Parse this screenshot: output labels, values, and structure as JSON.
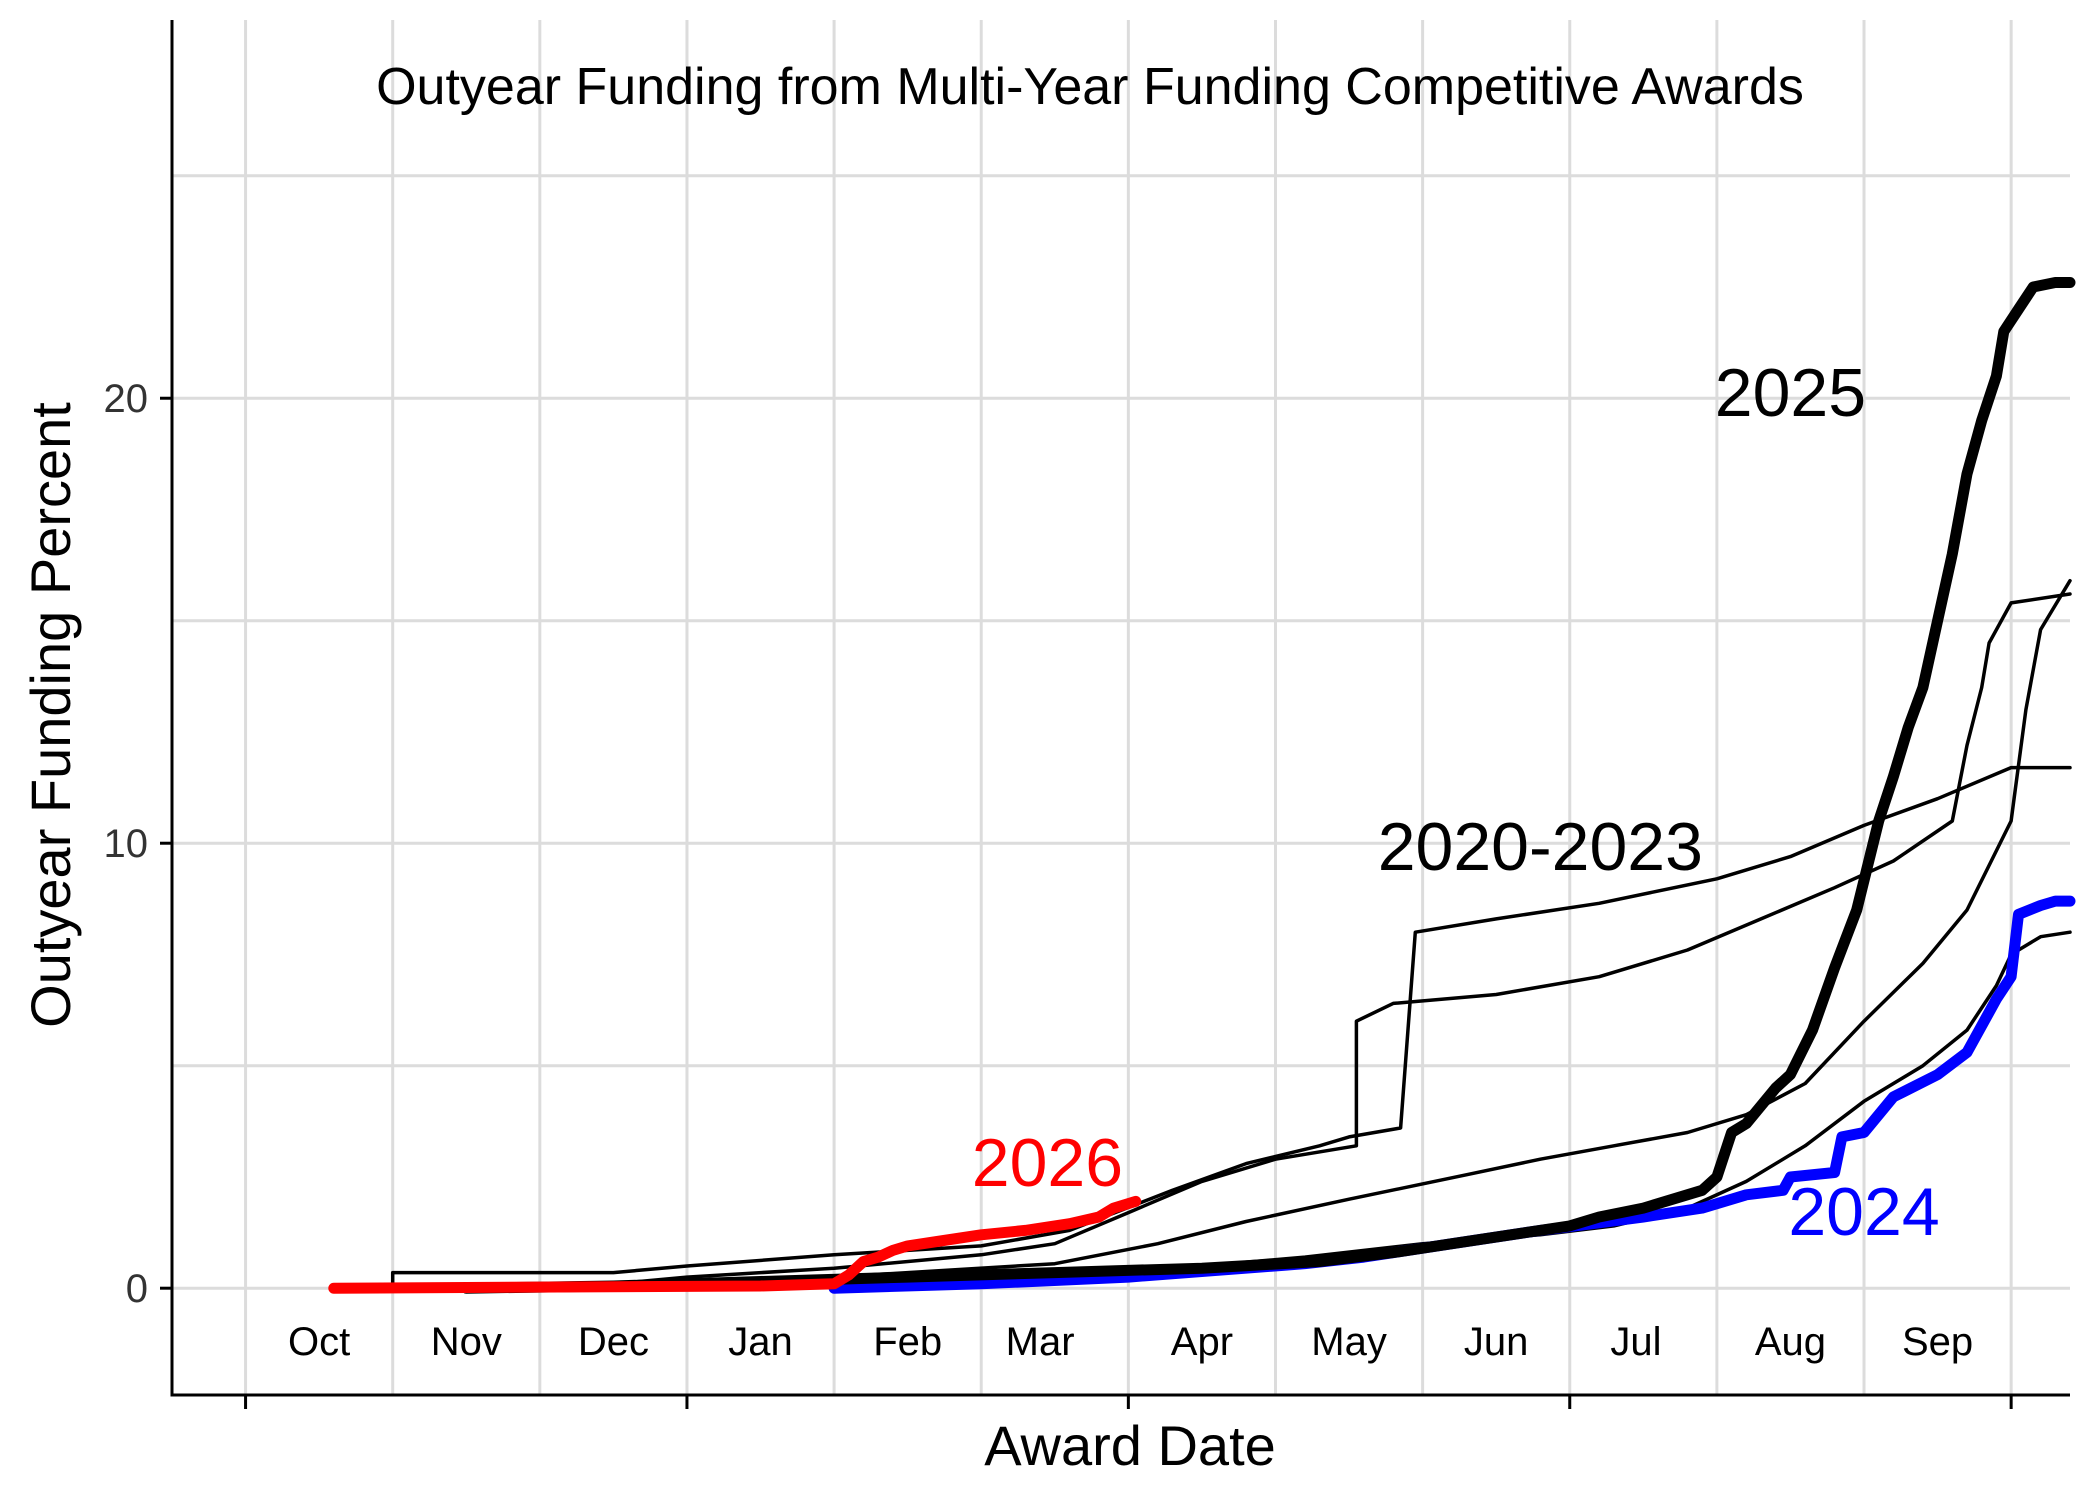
{
  "chart_data": {
    "type": "line",
    "title": "Outyear Funding from Multi-Year Funding Competitive Awards",
    "xlabel": "Award Date",
    "ylabel": "Outyear Funding Percent",
    "x_unit": "month of fiscal year (0 = Oct 1)",
    "xlim": [
      -0.5,
      12.4
    ],
    "ylim": [
      -2.4,
      28.5
    ],
    "y_ticks": [
      0,
      10,
      20
    ],
    "y_minor_grid": [
      5,
      15,
      25
    ],
    "x_major_grid": [
      0,
      3,
      6,
      9,
      12
    ],
    "x_tick_labels": [
      {
        "label": "Oct",
        "x": 0.5
      },
      {
        "label": "Nov",
        "x": 1.5
      },
      {
        "label": "Dec",
        "x": 2.5
      },
      {
        "label": "Jan",
        "x": 3.5
      },
      {
        "label": "Feb",
        "x": 4.5
      },
      {
        "label": "Mar",
        "x": 5.4
      },
      {
        "label": "Apr",
        "x": 6.5
      },
      {
        "label": "May",
        "x": 7.5
      },
      {
        "label": "Jun",
        "x": 8.5
      },
      {
        "label": "Jul",
        "x": 9.45
      },
      {
        "label": "Aug",
        "x": 10.5
      },
      {
        "label": "Sep",
        "x": 11.5
      }
    ],
    "grid": true,
    "series": [
      {
        "group": "2020-2023",
        "color": "#000000",
        "width": "thin",
        "points": [
          [
            1.0,
            0.0
          ],
          [
            1.0,
            0.35
          ],
          [
            2.5,
            0.35
          ],
          [
            3.0,
            0.5
          ],
          [
            4.0,
            0.75
          ],
          [
            5.0,
            0.95
          ],
          [
            5.6,
            1.3
          ],
          [
            6.3,
            2.2
          ],
          [
            6.8,
            2.8
          ],
          [
            7.3,
            3.2
          ],
          [
            7.5,
            3.4
          ],
          [
            7.85,
            3.6
          ],
          [
            7.95,
            8.0
          ],
          [
            8.5,
            8.3
          ],
          [
            9.2,
            8.65
          ],
          [
            10.0,
            9.2
          ],
          [
            10.5,
            9.7
          ],
          [
            11.0,
            10.4
          ],
          [
            11.5,
            11.0
          ],
          [
            12.0,
            11.7
          ],
          [
            12.4,
            11.7
          ]
        ]
      },
      {
        "group": "2020-2023",
        "color": "#000000",
        "width": "thin",
        "points": [
          [
            1.5,
            0.0
          ],
          [
            2.5,
            0.1
          ],
          [
            3.0,
            0.25
          ],
          [
            4.0,
            0.45
          ],
          [
            5.0,
            0.75
          ],
          [
            5.5,
            1.0
          ],
          [
            6.0,
            1.7
          ],
          [
            6.5,
            2.4
          ],
          [
            7.0,
            2.9
          ],
          [
            7.55,
            3.2
          ],
          [
            7.55,
            6.0
          ],
          [
            7.8,
            6.4
          ],
          [
            8.5,
            6.6
          ],
          [
            9.2,
            7.0
          ],
          [
            9.8,
            7.6
          ],
          [
            10.3,
            8.3
          ],
          [
            10.8,
            9.0
          ],
          [
            11.2,
            9.6
          ],
          [
            11.6,
            10.5
          ],
          [
            11.7,
            12.2
          ],
          [
            11.8,
            13.5
          ],
          [
            11.85,
            14.5
          ],
          [
            12.0,
            15.4
          ],
          [
            12.4,
            15.6
          ]
        ]
      },
      {
        "group": "2020-2023",
        "color": "#000000",
        "width": "thin",
        "points": [
          [
            2.5,
            0.0
          ],
          [
            3.5,
            0.15
          ],
          [
            4.5,
            0.35
          ],
          [
            5.5,
            0.55
          ],
          [
            6.2,
            1.0
          ],
          [
            6.8,
            1.5
          ],
          [
            7.5,
            2.0
          ],
          [
            8.3,
            2.55
          ],
          [
            8.8,
            2.9
          ],
          [
            9.3,
            3.2
          ],
          [
            9.8,
            3.5
          ],
          [
            10.2,
            3.9
          ],
          [
            10.6,
            4.6
          ],
          [
            11.0,
            6.0
          ],
          [
            11.4,
            7.3
          ],
          [
            11.7,
            8.5
          ],
          [
            12.0,
            10.5
          ],
          [
            12.1,
            13.0
          ],
          [
            12.2,
            14.8
          ],
          [
            12.4,
            15.9
          ]
        ]
      },
      {
        "group": "2020-2023",
        "color": "#000000",
        "width": "thin",
        "points": [
          [
            3.0,
            0.0
          ],
          [
            4.0,
            0.05
          ],
          [
            5.0,
            0.15
          ],
          [
            5.6,
            0.3
          ],
          [
            6.5,
            0.5
          ],
          [
            7.2,
            0.7
          ],
          [
            8.0,
            1.0
          ],
          [
            8.8,
            1.2
          ],
          [
            9.3,
            1.4
          ],
          [
            9.8,
            1.8
          ],
          [
            10.2,
            2.4
          ],
          [
            10.6,
            3.2
          ],
          [
            11.0,
            4.2
          ],
          [
            11.4,
            5.0
          ],
          [
            11.7,
            5.8
          ],
          [
            11.9,
            6.8
          ],
          [
            12.0,
            7.5
          ],
          [
            12.2,
            7.9
          ],
          [
            12.4,
            8.0
          ]
        ]
      },
      {
        "group": "2024",
        "color": "#0000ff",
        "width": "thick",
        "points": [
          [
            4.0,
            0.0
          ],
          [
            5.0,
            0.1
          ],
          [
            6.0,
            0.25
          ],
          [
            6.8,
            0.45
          ],
          [
            7.2,
            0.55
          ],
          [
            7.6,
            0.7
          ],
          [
            8.2,
            1.0
          ],
          [
            8.8,
            1.3
          ],
          [
            9.5,
            1.6
          ],
          [
            9.9,
            1.8
          ],
          [
            10.2,
            2.1
          ],
          [
            10.45,
            2.2
          ],
          [
            10.5,
            2.5
          ],
          [
            10.8,
            2.6
          ],
          [
            10.85,
            3.4
          ],
          [
            11.0,
            3.5
          ],
          [
            11.2,
            4.3
          ],
          [
            11.5,
            4.8
          ],
          [
            11.7,
            5.3
          ],
          [
            11.9,
            6.5
          ],
          [
            12.0,
            7.0
          ],
          [
            12.05,
            8.4
          ],
          [
            12.2,
            8.6
          ],
          [
            12.3,
            8.7
          ],
          [
            12.4,
            8.7
          ]
        ]
      },
      {
        "group": "2025",
        "color": "#000000",
        "width": "thick",
        "points": [
          [
            1.5,
            0.0
          ],
          [
            2.5,
            0.05
          ],
          [
            3.5,
            0.15
          ],
          [
            4.5,
            0.25
          ],
          [
            5.5,
            0.35
          ],
          [
            6.5,
            0.45
          ],
          [
            7.3,
            0.6
          ],
          [
            7.8,
            0.8
          ],
          [
            8.2,
            1.0
          ],
          [
            8.6,
            1.2
          ],
          [
            9.0,
            1.4
          ],
          [
            9.2,
            1.6
          ],
          [
            9.5,
            1.8
          ],
          [
            9.9,
            2.2
          ],
          [
            10.0,
            2.5
          ],
          [
            10.1,
            3.5
          ],
          [
            10.2,
            3.7
          ],
          [
            10.4,
            4.5
          ],
          [
            10.5,
            4.8
          ],
          [
            10.65,
            5.8
          ],
          [
            10.8,
            7.2
          ],
          [
            10.95,
            8.5
          ],
          [
            11.1,
            10.5
          ],
          [
            11.2,
            11.5
          ],
          [
            11.3,
            12.6
          ],
          [
            11.4,
            13.5
          ],
          [
            11.5,
            15.0
          ],
          [
            11.6,
            16.5
          ],
          [
            11.7,
            18.3
          ],
          [
            11.8,
            19.5
          ],
          [
            11.9,
            20.5
          ],
          [
            11.95,
            21.5
          ],
          [
            12.05,
            22.0
          ],
          [
            12.15,
            22.5
          ],
          [
            12.3,
            22.6
          ],
          [
            12.4,
            22.6
          ]
        ]
      },
      {
        "group": "2026",
        "color": "#ff0000",
        "width": "thick",
        "points": [
          [
            0.6,
            0.0
          ],
          [
            3.5,
            0.05
          ],
          [
            4.0,
            0.1
          ],
          [
            4.1,
            0.3
          ],
          [
            4.2,
            0.6
          ],
          [
            4.3,
            0.7
          ],
          [
            4.4,
            0.85
          ],
          [
            4.5,
            0.95
          ],
          [
            4.7,
            1.05
          ],
          [
            5.0,
            1.2
          ],
          [
            5.3,
            1.3
          ],
          [
            5.6,
            1.45
          ],
          [
            5.8,
            1.6
          ],
          [
            5.9,
            1.8
          ],
          [
            6.05,
            1.95
          ]
        ]
      }
    ],
    "annotations": [
      {
        "text": "2025",
        "x": 10.5,
        "y": 19.6,
        "color": "#000000"
      },
      {
        "text": "2020-2023",
        "x": 8.8,
        "y": 9.4,
        "color": "#000000"
      },
      {
        "text": "2026",
        "x": 5.45,
        "y": 2.3,
        "color": "#ff0000"
      },
      {
        "text": "2024",
        "x": 11.0,
        "y": 1.2,
        "color": "#0000ff"
      }
    ]
  }
}
